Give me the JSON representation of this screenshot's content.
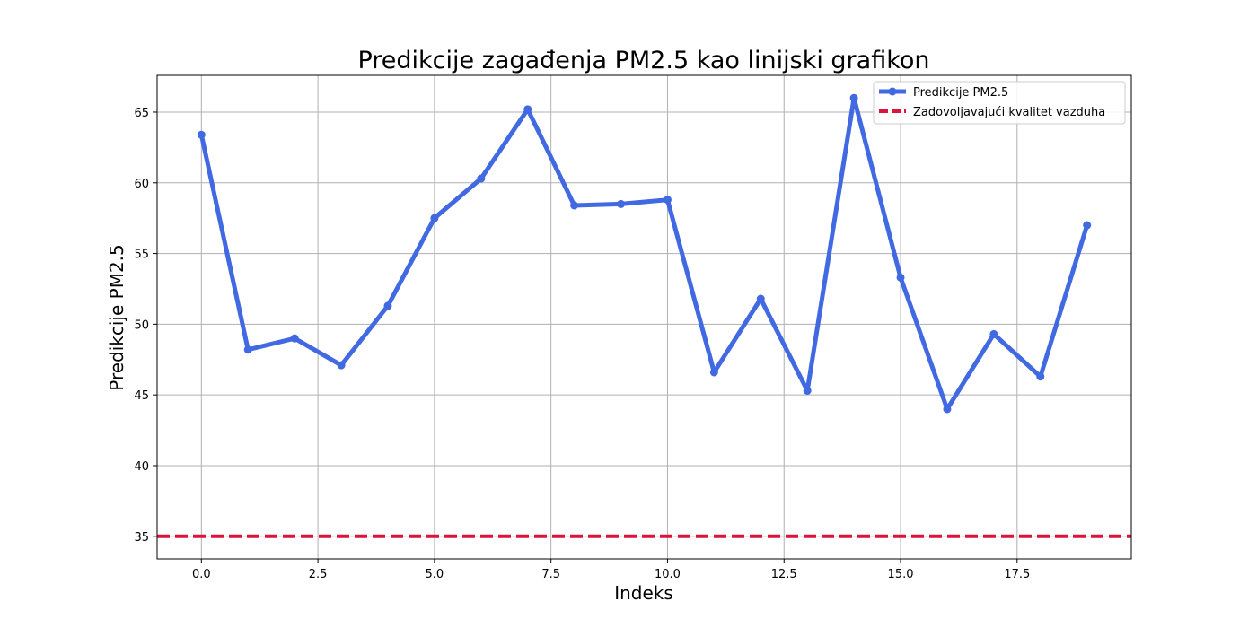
{
  "chart_data": {
    "type": "line",
    "title": "Predikcije zagađenja PM2.5 kao linijski grafikon",
    "xlabel": "Indeks",
    "ylabel": "Predikcije PM2.5",
    "xlim": [
      -0.95,
      19.95
    ],
    "ylim": [
      33.4,
      67.6
    ],
    "xticks": [
      0.0,
      2.5,
      5.0,
      7.5,
      10.0,
      12.5,
      15.0,
      17.5
    ],
    "xtick_labels": [
      "0.0",
      "2.5",
      "5.0",
      "7.5",
      "10.0",
      "12.5",
      "15.0",
      "17.5"
    ],
    "yticks": [
      35,
      40,
      45,
      50,
      55,
      60,
      65
    ],
    "ytick_labels": [
      "35",
      "40",
      "45",
      "50",
      "55",
      "60",
      "65"
    ],
    "grid": true,
    "legend_position": "top-right",
    "series": [
      {
        "name": "Predikcije PM2.5",
        "color": "#4169e1",
        "marker": "circle",
        "x": [
          0,
          1,
          2,
          3,
          4,
          5,
          6,
          7,
          8,
          9,
          10,
          11,
          12,
          13,
          14,
          15,
          16,
          17,
          18,
          19
        ],
        "y": [
          63.4,
          48.2,
          49.0,
          47.1,
          51.3,
          57.5,
          60.3,
          65.2,
          58.4,
          58.5,
          58.8,
          46.6,
          51.8,
          45.3,
          66.0,
          53.3,
          44.0,
          49.3,
          46.3,
          57.0
        ]
      }
    ],
    "reference_lines": [
      {
        "name": "Zadovoljavajući kvalitet vazduha",
        "y": 35,
        "color": "#dc143c",
        "style": "dashed"
      }
    ]
  }
}
